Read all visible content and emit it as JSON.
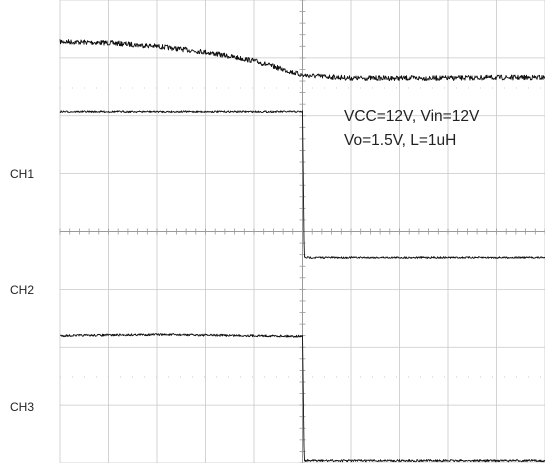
{
  "chart_data": {
    "type": "line",
    "grid": true,
    "x_divisions": 10,
    "y_divisions": 8,
    "annotations": [
      "VCC=12V, Vin=12V",
      "Vo=1.5V, L=1uH"
    ],
    "channel_labels": [
      "CH1",
      "CH2",
      "CH3"
    ],
    "series": [
      {
        "name": "",
        "trace": "top",
        "x": [
          0,
          1,
          2,
          3,
          4,
          5,
          6,
          7,
          8,
          9,
          10
        ],
        "values": [
          3.28,
          3.26,
          3.2,
          3.1,
          2.95,
          2.7,
          2.65,
          2.65,
          2.65,
          2.66,
          2.66
        ]
      },
      {
        "name": "CH1",
        "x": [
          0,
          1,
          2,
          3,
          4,
          5,
          6,
          7,
          8,
          9,
          10
        ],
        "values": [
          2.07,
          2.07,
          2.07,
          2.07,
          2.07,
          2.07,
          -0.45,
          -0.45,
          -0.45,
          -0.45,
          -0.45
        ]
      },
      {
        "name": "CH2",
        "x": [
          0,
          1,
          2,
          3,
          4,
          5,
          6,
          7,
          8,
          9,
          10
        ],
        "values": [
          -1.8,
          -1.79,
          -1.78,
          -1.79,
          -1.8,
          -1.81,
          -3.96,
          -3.96,
          -3.96,
          -3.96,
          -3.96
        ]
      }
    ]
  }
}
